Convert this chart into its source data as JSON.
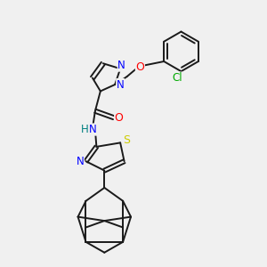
{
  "bg_color": "#f0f0f0",
  "bond_color": "#1a1a1a",
  "N_color": "#0000ff",
  "O_color": "#ff0000",
  "S_color": "#cccc00",
  "Cl_color": "#00aa00",
  "H_color": "#008080",
  "line_width": 1.4,
  "xlim": [
    0,
    10
  ],
  "ylim": [
    0,
    10
  ]
}
